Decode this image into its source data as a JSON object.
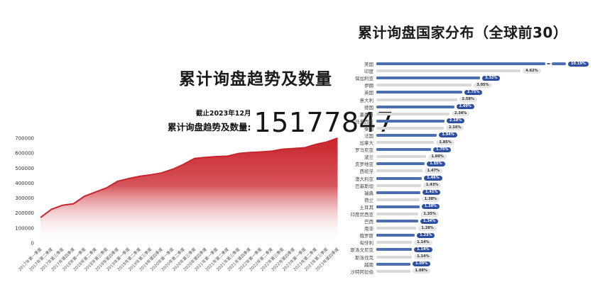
{
  "left_chart": {
    "title": "累计询盘趋势及数量",
    "asof": "截止2023年12月",
    "stat_label": "累计询盘趋势及数量:",
    "stat_value": "15177847"
  },
  "right_chart": {
    "title": "累计询盘国家分布（全球前30）"
  },
  "colors": {
    "red_line": "#c9242b",
    "red_fill_top": "#c9242b",
    "blue_bar": "#4e6fae",
    "gray_bar": "#d8d8d8",
    "navy_badge": "#2e4fa0",
    "gray_badge": "#e6e6e6"
  },
  "chart_data": [
    {
      "type": "area",
      "title": "累计询盘趋势及数量",
      "xlabel": "",
      "ylabel": "",
      "ylim": [
        0,
        700000
      ],
      "yticks": [
        0,
        100000,
        200000,
        300000,
        400000,
        500000,
        600000,
        700000
      ],
      "x": [
        "2017年第一季度",
        "2017年第二季度",
        "2017年第三季度",
        "2017年第四季度",
        "2018年第一季度",
        "2018年第二季度",
        "2018年第三季度",
        "2018年第四季度",
        "2019年第一季度",
        "2019年第二季度",
        "2019年第三季度",
        "2019年第四季度",
        "2020年第一季度",
        "2020年第二季度",
        "2020年第三季度",
        "2020年第四季度",
        "2021年第一季度",
        "2021年第二季度",
        "2021年第三季度",
        "2021年第四季度",
        "2022年第一季度",
        "2022年第二季度",
        "2022年第三季度",
        "2022年第四季度",
        "2023年第一季度",
        "2023年第二季度",
        "2023年第三季度",
        "2023年第四季度"
      ],
      "values": [
        170000,
        225000,
        252000,
        262000,
        312000,
        340000,
        368000,
        412000,
        430000,
        445000,
        455000,
        468000,
        492000,
        525000,
        565000,
        572000,
        577000,
        580000,
        598000,
        604000,
        608000,
        613000,
        626000,
        631000,
        636000,
        658000,
        674000,
        700000
      ],
      "grid": false,
      "legend": false
    },
    {
      "type": "bar",
      "orientation": "horizontal",
      "title": "累计询盘国家分布（全球前30）",
      "categories": [
        "美国",
        "印度",
        "保加利亚",
        "伊朗",
        "英国",
        "意大利",
        "德国",
        "墨西哥",
        "马来西亚",
        "泰国",
        "法国",
        "加拿大",
        "罗马尼亚",
        "波兰",
        "克罗地亚",
        "西班牙",
        "澳大利亚",
        "巴基斯坦",
        "瑞典",
        "荷兰",
        "土耳其",
        "印度尼西亚",
        "巴西",
        "南非",
        "俄罗斯",
        "匈牙利",
        "斯洛文尼亚",
        "斯洛伐克",
        "越南",
        "沙特阿拉伯"
      ],
      "values": [
        10.19,
        4.62,
        3.32,
        3.05,
        2.75,
        2.58,
        2.49,
        2.34,
        2.18,
        2.16,
        1.94,
        1.85,
        1.75,
        1.6,
        1.55,
        1.47,
        1.46,
        1.43,
        1.41,
        1.38,
        1.38,
        1.35,
        1.34,
        1.28,
        1.23,
        1.14,
        1.14,
        1.14,
        1.09,
        1.08
      ],
      "labels": [
        "10.19%",
        "4.62%",
        "3.32%",
        "3.05%",
        "2.75%",
        "2.58%",
        "2.49%",
        "2.34%",
        "2.18%",
        "2.16%",
        "1.94%",
        "1.85%",
        "1.75%",
        "1.60%",
        "1.55%",
        "1.47%",
        "1.46%",
        "1.43%",
        "1.41%",
        "1.38%",
        "1.38%",
        "1.35%",
        "1.34%",
        "1.28%",
        "1.23%",
        "1.14%",
        "1.14%",
        "1.14%",
        "1.09%",
        "1.08%"
      ],
      "axis_break_rows": [
        0
      ],
      "legend": false
    }
  ]
}
